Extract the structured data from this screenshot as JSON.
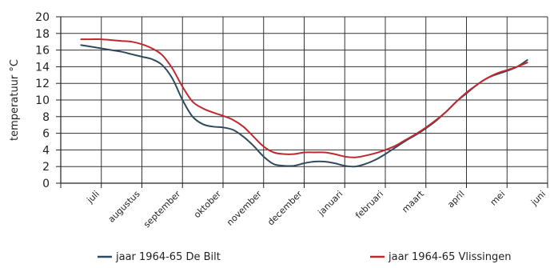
{
  "chart_data": {
    "type": "line",
    "title": "",
    "xlabel": "",
    "ylabel": "temperatuur °C",
    "ylim": [
      0,
      20
    ],
    "yticks": [
      0,
      2,
      4,
      6,
      8,
      10,
      12,
      14,
      16,
      18,
      20
    ],
    "grid": true,
    "legend_placement": "bottom",
    "categories": [
      "juli",
      "augustus",
      "september",
      "oktober",
      "november",
      "december",
      "januari",
      "februari",
      "maart",
      "april",
      "mei",
      "juni"
    ],
    "x": [
      0,
      0.25,
      0.5,
      0.75,
      1,
      1.25,
      1.5,
      1.75,
      2,
      2.25,
      2.5,
      2.75,
      3,
      3.25,
      3.5,
      3.75,
      4,
      4.25,
      4.5,
      4.75,
      5,
      5.25,
      5.5,
      5.75,
      6,
      6.25,
      6.5,
      6.75,
      7,
      7.25,
      7.5,
      7.75,
      8,
      8.25,
      8.5,
      8.75,
      9,
      9.25,
      9.5,
      9.75,
      10,
      10.25,
      10.5,
      10.75,
      11
    ],
    "series": [
      {
        "name": "jaar 1964-65 De Bilt",
        "color": "#2e4a5c",
        "values": [
          16.6,
          16.4,
          16.2,
          16.0,
          15.8,
          15.5,
          15.2,
          14.9,
          14.2,
          12.6,
          10.0,
          8.0,
          7.1,
          6.8,
          6.7,
          6.4,
          5.6,
          4.5,
          3.2,
          2.3,
          2.1,
          2.1,
          2.4,
          2.6,
          2.6,
          2.4,
          2.1,
          2.0,
          2.3,
          2.8,
          3.5,
          4.3,
          5.1,
          5.8,
          6.6,
          7.5,
          8.6,
          9.8,
          10.8,
          11.8,
          12.6,
          13.1,
          13.5,
          14.0,
          14.8
        ]
      },
      {
        "name": "jaar 1964-65 Vlissingen",
        "color": "#c0282f",
        "values": [
          17.3,
          17.3,
          17.3,
          17.2,
          17.1,
          17.0,
          16.7,
          16.2,
          15.4,
          13.8,
          11.6,
          9.8,
          9.0,
          8.5,
          8.1,
          7.6,
          6.8,
          5.6,
          4.4,
          3.7,
          3.5,
          3.5,
          3.7,
          3.7,
          3.7,
          3.5,
          3.2,
          3.1,
          3.3,
          3.6,
          4.0,
          4.5,
          5.2,
          5.9,
          6.7,
          7.6,
          8.6,
          9.8,
          10.9,
          11.8,
          12.6,
          13.2,
          13.6,
          14.0,
          14.5
        ]
      }
    ]
  }
}
